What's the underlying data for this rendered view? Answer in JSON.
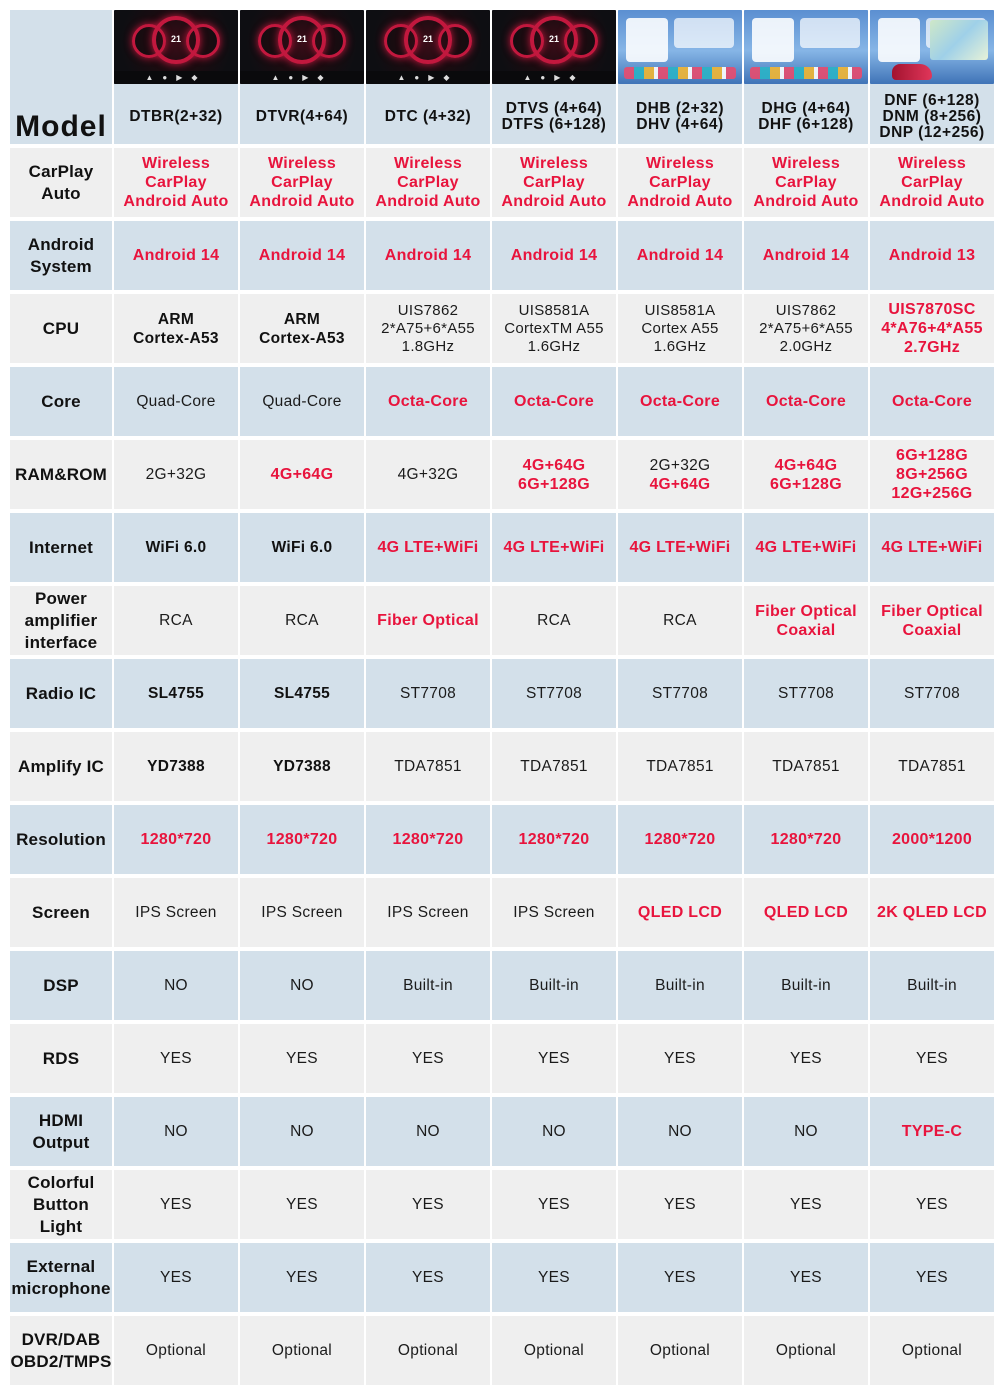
{
  "header": {
    "label": "Model",
    "models": [
      {
        "name": "DTBR(2+32)",
        "thumb": "dark"
      },
      {
        "name": "DTVR(4+64)",
        "thumb": "dark"
      },
      {
        "name": "DTC (4+32)",
        "thumb": "dark"
      },
      {
        "name": "DTVS (4+64)\nDTFS (6+128)",
        "thumb": "dark"
      },
      {
        "name": "DHB (2+32)\nDHV (4+64)",
        "thumb": "light"
      },
      {
        "name": "DHG (4+64)\nDHF (6+128)",
        "thumb": "light"
      },
      {
        "name": "DNF (6+128)\nDNM (8+256)\nDNP (12+256)",
        "thumb": "light"
      }
    ]
  },
  "rows": [
    {
      "label": "CarPlay\nAuto",
      "shade": "plain",
      "cells": [
        {
          "text": "Wireless CarPlay\nAndroid Auto",
          "style": "red"
        },
        {
          "text": "Wireless CarPlay\nAndroid Auto",
          "style": "red"
        },
        {
          "text": "Wireless CarPlay\nAndroid Auto",
          "style": "red"
        },
        {
          "text": "Wireless CarPlay\nAndroid Auto",
          "style": "red"
        },
        {
          "text": "Wireless CarPlay\nAndroid Auto",
          "style": "red"
        },
        {
          "text": "Wireless CarPlay\nAndroid Auto",
          "style": "red"
        },
        {
          "text": "Wireless CarPlay\nAndroid Auto",
          "style": "red"
        }
      ]
    },
    {
      "label": "Android\nSystem",
      "shade": "shade",
      "cells": [
        {
          "text": "Android 14",
          "style": "red"
        },
        {
          "text": "Android 14",
          "style": "red"
        },
        {
          "text": "Android 14",
          "style": "red"
        },
        {
          "text": "Android 14",
          "style": "red"
        },
        {
          "text": "Android 14",
          "style": "red"
        },
        {
          "text": "Android 14",
          "style": "red"
        },
        {
          "text": "Android 13",
          "style": "red"
        }
      ]
    },
    {
      "label": "CPU",
      "shade": "plain",
      "cells": [
        {
          "text": "ARM\nCortex-A53",
          "style": "bold"
        },
        {
          "text": "ARM\nCortex-A53",
          "style": "bold"
        },
        {
          "text": "UIS7862\n2*A75+6*A55\n1.8GHz",
          "style": "small"
        },
        {
          "text": "UIS8581A\nCortexTM A55\n1.6GHz",
          "style": "small"
        },
        {
          "text": "UIS8581A\nCortex A55\n1.6GHz",
          "style": "small"
        },
        {
          "text": "UIS7862\n2*A75+6*A55\n2.0GHz",
          "style": "small"
        },
        {
          "text": "UIS7870SC\n4*A76+4*A55\n2.7GHz",
          "style": "red"
        }
      ]
    },
    {
      "label": "Core",
      "shade": "shade",
      "cells": [
        {
          "text": "Quad-Core",
          "style": ""
        },
        {
          "text": "Quad-Core",
          "style": ""
        },
        {
          "text": "Octa-Core",
          "style": "red"
        },
        {
          "text": "Octa-Core",
          "style": "red"
        },
        {
          "text": "Octa-Core",
          "style": "red"
        },
        {
          "text": "Octa-Core",
          "style": "red"
        },
        {
          "text": "Octa-Core",
          "style": "red"
        }
      ]
    },
    {
      "label": "RAM&ROM",
      "shade": "plain",
      "cells": [
        {
          "text": "2G+32G",
          "style": ""
        },
        {
          "text": "4G+64G",
          "style": "red"
        },
        {
          "text": "4G+32G",
          "style": ""
        },
        {
          "text": "4G+64G\n6G+128G",
          "style": "red"
        },
        {
          "text": "2G+32G\n4G+64G",
          "style": "mixed",
          "parts": [
            {
              "t": "2G+32G",
              "red": false
            },
            {
              "t": "4G+64G",
              "red": true
            }
          ]
        },
        {
          "text": "4G+64G\n6G+128G",
          "style": "red"
        },
        {
          "text": "6G+128G\n8G+256G\n12G+256G",
          "style": "red"
        }
      ]
    },
    {
      "label": "Internet",
      "shade": "shade",
      "cells": [
        {
          "text": "WiFi 6.0",
          "style": "bold"
        },
        {
          "text": "WiFi 6.0",
          "style": "bold"
        },
        {
          "text": "4G LTE+WiFi",
          "style": "red"
        },
        {
          "text": "4G LTE+WiFi",
          "style": "red"
        },
        {
          "text": "4G LTE+WiFi",
          "style": "red"
        },
        {
          "text": "4G LTE+WiFi",
          "style": "red"
        },
        {
          "text": "4G LTE+WiFi",
          "style": "red"
        }
      ]
    },
    {
      "label": "Power\namplifier\ninterface",
      "shade": "plain",
      "cells": [
        {
          "text": "RCA",
          "style": ""
        },
        {
          "text": "RCA",
          "style": ""
        },
        {
          "text": "Fiber Optical",
          "style": "red"
        },
        {
          "text": "RCA",
          "style": ""
        },
        {
          "text": "RCA",
          "style": ""
        },
        {
          "text": "Fiber Optical\nCoaxial",
          "style": "red"
        },
        {
          "text": "Fiber Optical\nCoaxial",
          "style": "red"
        }
      ]
    },
    {
      "label": "Radio IC",
      "shade": "shade",
      "cells": [
        {
          "text": "SL4755",
          "style": "bold"
        },
        {
          "text": "SL4755",
          "style": "bold"
        },
        {
          "text": "ST7708",
          "style": ""
        },
        {
          "text": "ST7708",
          "style": ""
        },
        {
          "text": "ST7708",
          "style": ""
        },
        {
          "text": "ST7708",
          "style": ""
        },
        {
          "text": "ST7708",
          "style": ""
        }
      ]
    },
    {
      "label": "Amplify IC",
      "shade": "plain",
      "cells": [
        {
          "text": "YD7388",
          "style": "bold"
        },
        {
          "text": "YD7388",
          "style": "bold"
        },
        {
          "text": "TDA7851",
          "style": ""
        },
        {
          "text": "TDA7851",
          "style": ""
        },
        {
          "text": "TDA7851",
          "style": ""
        },
        {
          "text": "TDA7851",
          "style": ""
        },
        {
          "text": "TDA7851",
          "style": ""
        }
      ]
    },
    {
      "label": "Resolution",
      "shade": "shade",
      "cells": [
        {
          "text": "1280*720",
          "style": "red"
        },
        {
          "text": "1280*720",
          "style": "red"
        },
        {
          "text": "1280*720",
          "style": "red"
        },
        {
          "text": "1280*720",
          "style": "red"
        },
        {
          "text": "1280*720",
          "style": "red"
        },
        {
          "text": "1280*720",
          "style": "red"
        },
        {
          "text": "2000*1200",
          "style": "red"
        }
      ]
    },
    {
      "label": "Screen",
      "shade": "plain",
      "cells": [
        {
          "text": "IPS Screen",
          "style": ""
        },
        {
          "text": "IPS Screen",
          "style": ""
        },
        {
          "text": "IPS Screen",
          "style": ""
        },
        {
          "text": "IPS Screen",
          "style": ""
        },
        {
          "text": "QLED LCD",
          "style": "red"
        },
        {
          "text": "QLED LCD",
          "style": "red"
        },
        {
          "text": "2K QLED LCD",
          "style": "red"
        }
      ]
    },
    {
      "label": "DSP",
      "shade": "shade",
      "cells": [
        {
          "text": "NO",
          "style": ""
        },
        {
          "text": "NO",
          "style": ""
        },
        {
          "text": "Built-in",
          "style": ""
        },
        {
          "text": "Built-in",
          "style": ""
        },
        {
          "text": "Built-in",
          "style": ""
        },
        {
          "text": "Built-in",
          "style": ""
        },
        {
          "text": "Built-in",
          "style": ""
        }
      ]
    },
    {
      "label": "RDS",
      "shade": "plain",
      "cells": [
        {
          "text": "YES",
          "style": ""
        },
        {
          "text": "YES",
          "style": ""
        },
        {
          "text": "YES",
          "style": ""
        },
        {
          "text": "YES",
          "style": ""
        },
        {
          "text": "YES",
          "style": ""
        },
        {
          "text": "YES",
          "style": ""
        },
        {
          "text": "YES",
          "style": ""
        }
      ]
    },
    {
      "label": "HDMI\nOutput",
      "shade": "shade",
      "cells": [
        {
          "text": "NO",
          "style": ""
        },
        {
          "text": "NO",
          "style": ""
        },
        {
          "text": "NO",
          "style": ""
        },
        {
          "text": "NO",
          "style": ""
        },
        {
          "text": "NO",
          "style": ""
        },
        {
          "text": "NO",
          "style": ""
        },
        {
          "text": "TYPE-C",
          "style": "red"
        }
      ]
    },
    {
      "label": "Colorful\nButton Light",
      "shade": "plain",
      "cells": [
        {
          "text": "YES",
          "style": ""
        },
        {
          "text": "YES",
          "style": ""
        },
        {
          "text": "YES",
          "style": ""
        },
        {
          "text": "YES",
          "style": ""
        },
        {
          "text": "YES",
          "style": ""
        },
        {
          "text": "YES",
          "style": ""
        },
        {
          "text": "YES",
          "style": ""
        }
      ]
    },
    {
      "label": "External\nmicrophone",
      "shade": "shade",
      "cells": [
        {
          "text": "YES",
          "style": ""
        },
        {
          "text": "YES",
          "style": ""
        },
        {
          "text": "YES",
          "style": ""
        },
        {
          "text": "YES",
          "style": ""
        },
        {
          "text": "YES",
          "style": ""
        },
        {
          "text": "YES",
          "style": ""
        },
        {
          "text": "YES",
          "style": ""
        }
      ]
    },
    {
      "label": "DVR/DAB\nOBD2/TMPS",
      "shade": "plain",
      "cells": [
        {
          "text": "Optional",
          "style": ""
        },
        {
          "text": "Optional",
          "style": ""
        },
        {
          "text": "Optional",
          "style": ""
        },
        {
          "text": "Optional",
          "style": ""
        },
        {
          "text": "Optional",
          "style": ""
        },
        {
          "text": "Optional",
          "style": ""
        },
        {
          "text": "Optional",
          "style": ""
        }
      ]
    }
  ],
  "thumb_text": {
    "gauge": "21",
    "bar": "▲●▶◆"
  },
  "colors": {
    "highlight": "#e8143d",
    "row_shade": "#d3e0ea",
    "row_plain": "#efefef"
  }
}
